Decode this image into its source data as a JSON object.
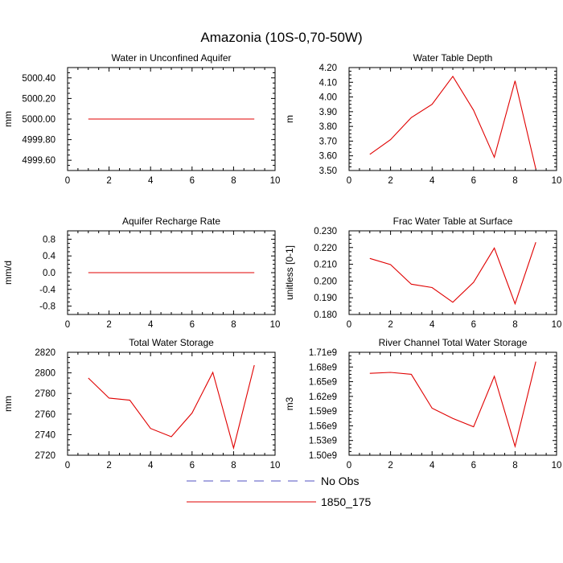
{
  "title": "Amazonia (10S-0,70-50W)",
  "colors": {
    "model": "#e00000",
    "obs": "#5050c0",
    "axis": "#000000"
  },
  "legend": [
    {
      "label": "No Obs",
      "style": "dashed",
      "color": "#5050c0"
    },
    {
      "label": "1850_175",
      "style": "solid",
      "color": "#e00000"
    }
  ],
  "chart_data": [
    {
      "type": "line",
      "title": "Water in Unconfined Aquifer",
      "ylabel": "mm",
      "xlim": [
        0,
        10
      ],
      "ylim": [
        4999.5,
        5000.5
      ],
      "xticks": [
        0,
        2,
        4,
        6,
        8,
        10
      ],
      "xtick_labels": [
        "0",
        "2",
        "4",
        "6",
        "8",
        "10"
      ],
      "yticks": [
        4999.6,
        4999.8,
        5000.0,
        5000.2,
        5000.4
      ],
      "ytick_labels": [
        "4999.60",
        "4999.80",
        "5000.00",
        "5000.20",
        "5000.40"
      ],
      "series": [
        {
          "name": "1850_175",
          "x": [
            1,
            2,
            3,
            4,
            5,
            6,
            7,
            8,
            9
          ],
          "values": [
            5000,
            5000,
            5000,
            5000,
            5000,
            5000,
            5000,
            5000,
            5000
          ]
        }
      ]
    },
    {
      "type": "line",
      "title": "Water Table Depth",
      "ylabel": "m",
      "xlim": [
        0,
        10
      ],
      "ylim": [
        3.5,
        4.2
      ],
      "xticks": [
        0,
        2,
        4,
        6,
        8,
        10
      ],
      "xtick_labels": [
        "0",
        "2",
        "4",
        "6",
        "8",
        "10"
      ],
      "yticks": [
        3.5,
        3.6,
        3.7,
        3.8,
        3.9,
        4.0,
        4.1,
        4.2
      ],
      "ytick_labels": [
        "3.50",
        "3.60",
        "3.70",
        "3.80",
        "3.90",
        "4.00",
        "4.10",
        "4.20"
      ],
      "series": [
        {
          "name": "1850_175",
          "x": [
            1,
            2,
            3,
            4,
            5,
            6,
            7,
            8,
            9
          ],
          "values": [
            3.61,
            3.71,
            3.86,
            3.95,
            4.14,
            3.91,
            3.59,
            4.11,
            3.51
          ]
        }
      ]
    },
    {
      "type": "line",
      "title": "Aquifer Recharge Rate",
      "ylabel": "mm/d",
      "xlim": [
        0,
        10
      ],
      "ylim": [
        -1.0,
        1.0
      ],
      "xticks": [
        0,
        2,
        4,
        6,
        8,
        10
      ],
      "xtick_labels": [
        "0",
        "2",
        "4",
        "6",
        "8",
        "10"
      ],
      "yticks": [
        -0.8,
        -0.4,
        0.0,
        0.4,
        0.8
      ],
      "ytick_labels": [
        "-0.8",
        "-0.4",
        "0.0",
        "0.4",
        "0.8"
      ],
      "series": [
        {
          "name": "1850_175",
          "x": [
            1,
            2,
            3,
            4,
            5,
            6,
            7,
            8,
            9
          ],
          "values": [
            0,
            0,
            0,
            0,
            0,
            0,
            0,
            0,
            0
          ]
        }
      ]
    },
    {
      "type": "line",
      "title": "Frac Water Table at Surface",
      "ylabel": "unitless [0-1]",
      "xlim": [
        0,
        10
      ],
      "ylim": [
        0.18,
        0.23
      ],
      "xticks": [
        0,
        2,
        4,
        6,
        8,
        10
      ],
      "xtick_labels": [
        "0",
        "2",
        "4",
        "6",
        "8",
        "10"
      ],
      "yticks": [
        0.18,
        0.19,
        0.2,
        0.21,
        0.22,
        0.23
      ],
      "ytick_labels": [
        "0.180",
        "0.190",
        "0.200",
        "0.210",
        "0.220",
        "0.230"
      ],
      "series": [
        {
          "name": "1850_175",
          "x": [
            1,
            2,
            3,
            4,
            5,
            6,
            7,
            8,
            9
          ],
          "values": [
            0.2135,
            0.2098,
            0.1981,
            0.1961,
            0.1873,
            0.1992,
            0.2197,
            0.1864,
            0.2232
          ]
        }
      ]
    },
    {
      "type": "line",
      "title": "Total Water Storage",
      "ylabel": "mm",
      "xlim": [
        0,
        10
      ],
      "ylim": [
        2720,
        2820
      ],
      "xticks": [
        0,
        2,
        4,
        6,
        8,
        10
      ],
      "xtick_labels": [
        "0",
        "2",
        "4",
        "6",
        "8",
        "10"
      ],
      "yticks": [
        2720,
        2740,
        2760,
        2780,
        2800,
        2820
      ],
      "ytick_labels": [
        "2720",
        "2740",
        "2760",
        "2780",
        "2800",
        "2820"
      ],
      "series": [
        {
          "name": "1850_175",
          "x": [
            1,
            2,
            3,
            4,
            5,
            6,
            7,
            8,
            9
          ],
          "values": [
            2795,
            2775.5,
            2773.5,
            2746,
            2738,
            2761,
            2800.5,
            2727,
            2807.5
          ]
        }
      ]
    },
    {
      "type": "line",
      "title": "River Channel Total Water Storage",
      "ylabel": "m3",
      "xlim": [
        0,
        10
      ],
      "ylim": [
        1500000000.0,
        1710000000.0
      ],
      "xticks": [
        0,
        2,
        4,
        6,
        8,
        10
      ],
      "xtick_labels": [
        "0",
        "2",
        "4",
        "6",
        "8",
        "10"
      ],
      "yticks": [
        1500000000.0,
        1530000000.0,
        1560000000.0,
        1590000000.0,
        1620000000.0,
        1650000000.0,
        1680000000.0,
        1710000000.0
      ],
      "ytick_labels": [
        "1.50e9",
        "1.53e9",
        "1.56e9",
        "1.59e9",
        "1.62e9",
        "1.65e9",
        "1.68e9",
        "1.71e9"
      ],
      "series": [
        {
          "name": "1850_175",
          "x": [
            1,
            2,
            3,
            4,
            5,
            6,
            7,
            8,
            9
          ],
          "values": [
            1667000000.0,
            1669000000.0,
            1665000000.0,
            1596000000.0,
            1575000000.0,
            1558000000.0,
            1661000000.0,
            1518000000.0,
            1691000000.0
          ]
        }
      ]
    }
  ]
}
